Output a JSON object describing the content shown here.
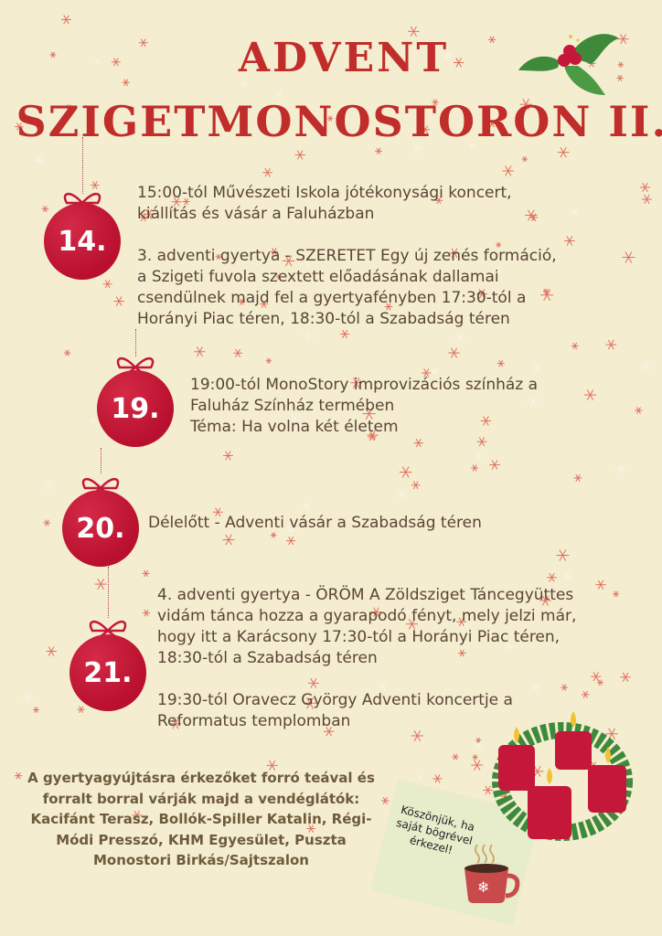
{
  "title": {
    "line1": "ADVENT",
    "line2": "SZIGETMONOSTORON II."
  },
  "events": [
    {
      "day": "14.",
      "text": "15:00-tól Művészeti Iskola jótékonysági koncert,\nkiállítás és vásár a Faluházban\n\n3. adventi gyertya - SZERETET   Egy új zenés formáció,\na Szigeti fuvola szextett előadásának dallamai\ncsendülnek majd fel a gyertyafényben 17:30-tól a\nHorányi Piac téren, 18:30-tól a Szabadság téren"
    },
    {
      "day": "19.",
      "text": "19:00-tól MonoStory improvizációs színház a\nFaluház Színház termében\nTéma: Ha volna két életem"
    },
    {
      "day": "20.",
      "text": "Délelőtt - Adventi vásár a Szabadság téren"
    },
    {
      "day": "21.",
      "text": "4. adventi gyertya - ÖRÖM   A Zöldsziget Táncegyüttes\nvidám tánca hozza a gyarapodó fényt, mely jelzi már,\nhogy itt a Karácsony 17:30-tól a Horányi Piac téren,\n18:30-tól a Szabadság téren\n\n19:30-tól Oravecz György Adventi koncertje a\nReformatus templomban"
    }
  ],
  "bottom_text": "A gyertyagyújtásra érkezőket forró teával és forralt borral várják majd a vendéglátók: Kacifánt Terasz, Bollók-Spiller Katalin, Régi-Módi Presszó, KHM Egyesület,  Puszta Monostori Birkás/Sajtszalon",
  "note": "Köszönjük, ha saját bögrével érkezel!",
  "colors": {
    "background": "#f4edd0",
    "title": "#c02d2a",
    "ornament": "#c4173a",
    "text": "#5b4536",
    "snowflake": "#e0705e"
  }
}
